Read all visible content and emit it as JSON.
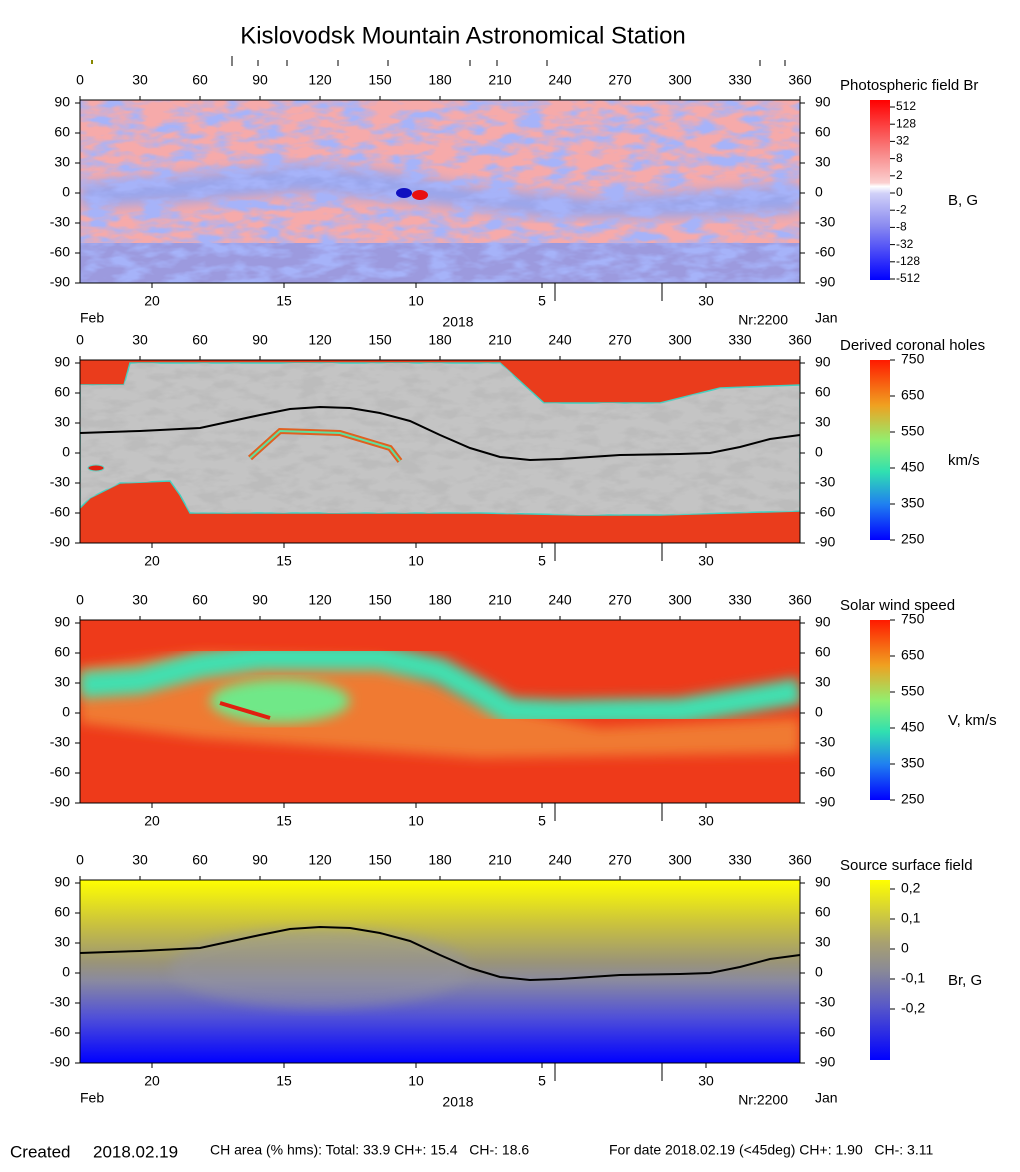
{
  "title": "Kislovodsk Mountain Astronomical Station",
  "chart_data": [
    {
      "type": "heatmap",
      "title": "Photospheric field Br",
      "colorbar_label": "B, G",
      "colormap": "red-blue",
      "xlim": [
        0,
        360
      ],
      "xticks": [
        0,
        30,
        60,
        90,
        120,
        150,
        180,
        210,
        240,
        270,
        300,
        330,
        360
      ],
      "ylim": [
        -90,
        90
      ],
      "yticks": [
        -90,
        -60,
        -30,
        0,
        30,
        60,
        90
      ],
      "date_ticks": [
        {
          "value": 36,
          "label": "20"
        },
        {
          "value": 102,
          "label": "15"
        },
        {
          "value": 168,
          "label": "10"
        },
        {
          "value": 231,
          "label": "5"
        },
        {
          "value": 313,
          "label": "30"
        }
      ],
      "colorbar_ticks": [
        512,
        128,
        32,
        8,
        2,
        0,
        -2,
        -8,
        -32,
        -128,
        -512
      ],
      "axis_notes": {
        "start": "Feb",
        "year": "2018",
        "rotation": "Nr:2200",
        "end": "Jan"
      }
    },
    {
      "type": "heatmap",
      "title": "Derived coronal holes",
      "colorbar_label": "km/s",
      "colormap": "rainbow",
      "layer": "coronal-holes",
      "xlim": [
        0,
        360
      ],
      "xticks": [
        0,
        30,
        60,
        90,
        120,
        150,
        180,
        210,
        240,
        270,
        300,
        330,
        360
      ],
      "ylim": [
        -90,
        90
      ],
      "yticks": [
        -90,
        -60,
        -30,
        0,
        30,
        60,
        90
      ],
      "date_ticks": [
        {
          "value": 36,
          "label": "20"
        },
        {
          "value": 102,
          "label": "15"
        },
        {
          "value": 168,
          "label": "10"
        },
        {
          "value": 231,
          "label": "5"
        },
        {
          "value": 313,
          "label": "30"
        }
      ],
      "clim": [
        250,
        750
      ],
      "colorbar_ticks": [
        750,
        650,
        550,
        450,
        350,
        250
      ],
      "line": {
        "color": "#000000",
        "x": [
          0,
          30,
          60,
          90,
          105,
          120,
          135,
          150,
          165,
          180,
          195,
          210,
          225,
          240,
          270,
          300,
          315,
          330,
          345,
          360
        ],
        "values": [
          20,
          22,
          25,
          38,
          44,
          46,
          45,
          40,
          32,
          18,
          5,
          -4,
          -7,
          -6,
          -2,
          -1,
          0,
          6,
          14,
          18
        ]
      }
    },
    {
      "type": "heatmap",
      "title": "Solar wind speed",
      "colorbar_label": "V, km/s",
      "colormap": "rainbow",
      "layer": "wind",
      "xlim": [
        0,
        360
      ],
      "xticks": [
        0,
        30,
        60,
        90,
        120,
        150,
        180,
        210,
        240,
        270,
        300,
        330,
        360
      ],
      "ylim": [
        -90,
        90
      ],
      "yticks": [
        -90,
        -60,
        -30,
        0,
        30,
        60,
        90
      ],
      "date_ticks": [
        {
          "value": 36,
          "label": "20"
        },
        {
          "value": 102,
          "label": "15"
        },
        {
          "value": 168,
          "label": "10"
        },
        {
          "value": 231,
          "label": "5"
        },
        {
          "value": 313,
          "label": "30"
        }
      ],
      "clim": [
        250,
        750
      ],
      "colorbar_ticks": [
        750,
        650,
        550,
        450,
        350,
        250
      ]
    },
    {
      "type": "heatmap",
      "title": "Source surface field",
      "colorbar_label": "Br, G",
      "colormap": "yellow-blue",
      "xlim": [
        0,
        360
      ],
      "xticks": [
        0,
        30,
        60,
        90,
        120,
        150,
        180,
        210,
        240,
        270,
        300,
        330,
        360
      ],
      "ylim": [
        -90,
        90
      ],
      "yticks": [
        -90,
        -60,
        -30,
        0,
        30,
        60,
        90
      ],
      "date_ticks": [
        {
          "value": 36,
          "label": "20"
        },
        {
          "value": 102,
          "label": "15"
        },
        {
          "value": 168,
          "label": "10"
        },
        {
          "value": 231,
          "label": "5"
        },
        {
          "value": 313,
          "label": "30"
        }
      ],
      "clim": [
        -0.37,
        0.23
      ],
      "colorbar_ticks": [
        {
          "value": 0.2,
          "label": "0,2"
        },
        {
          "value": 0.1,
          "label": "0,1"
        },
        0,
        {
          "value": -0.1,
          "label": "-0,1"
        },
        {
          "value": -0.2,
          "label": "-0,2"
        }
      ],
      "line": {
        "color": "#000000",
        "x": [
          0,
          30,
          60,
          90,
          105,
          120,
          135,
          150,
          165,
          180,
          195,
          210,
          225,
          240,
          270,
          300,
          315,
          330,
          345,
          360
        ],
        "values": [
          20,
          22,
          25,
          38,
          44,
          46,
          45,
          40,
          32,
          18,
          5,
          -4,
          -7,
          -6,
          -2,
          -1,
          0,
          6,
          14,
          18
        ]
      },
      "axis_notes": {
        "start": "Feb",
        "year": "2018",
        "rotation": "Nr:2200",
        "end": "Jan"
      }
    }
  ],
  "footer": {
    "created": "Created",
    "date": "2018.02.19",
    "ch_area": "CH area (% hms): Total: 33.9 CH+: 15.4   CH-: 18.6",
    "for_date": "For date 2018.02.19 (<45deg) CH+: 1.90   CH-: 3.11"
  }
}
